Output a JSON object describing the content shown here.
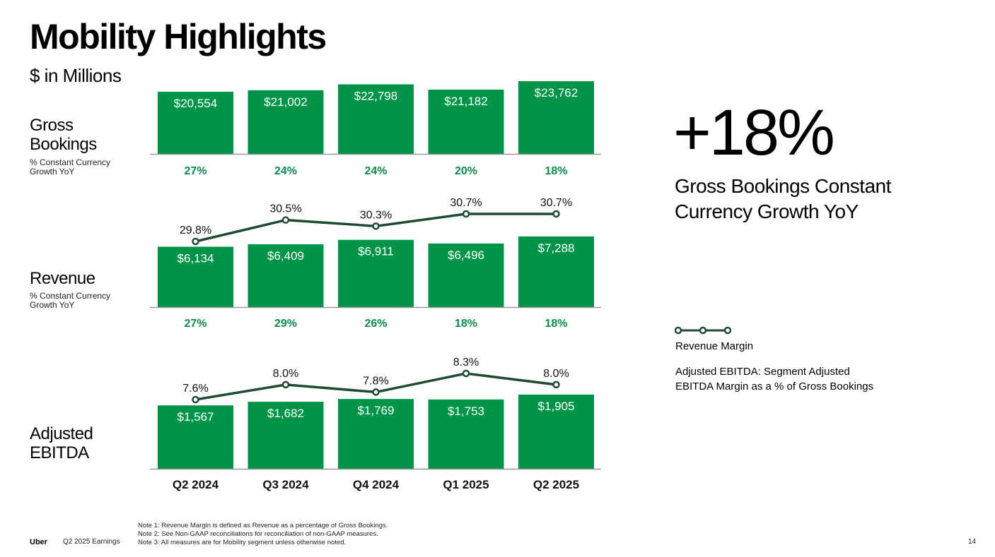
{
  "page": {
    "title": "Mobility Highlights",
    "subtitle": "$ in Millions",
    "page_number": "14"
  },
  "rows": {
    "gross_bookings": {
      "label_line1": "Gross",
      "label_line2": "Bookings",
      "sub_line1": "% Constant Currency",
      "sub_line2": "Growth YoY"
    },
    "revenue": {
      "label": "Revenue",
      "sub_line1": "% Constant Currency",
      "sub_line2": "Growth YoY"
    },
    "ebitda": {
      "label_line1": "Adjusted",
      "label_line2": "EBITDA"
    }
  },
  "highlight": {
    "value": "+18%",
    "caption_line1": "Gross Bookings Constant",
    "caption_line2": "Currency Growth YoY"
  },
  "legend": {
    "series_label": "Revenue Margin",
    "note_line1": "Adjusted EBITDA: Segment Adjusted",
    "note_line2": "EBITDA Margin as a % of Gross Bookings"
  },
  "footer": {
    "logo": "Uber",
    "deck": "Q2 2025 Earnings",
    "notes": [
      "Note 1: Revenue Margin is defined as Revenue as a percentage of Gross Bookings.",
      "Note 2: See Non-GAAP reconciliations for reconciliation of non-GAAP measures.",
      "Note 3: All measures are for Mobility segment unless otherwise noted."
    ]
  },
  "colors": {
    "bar": "#009448",
    "growth_text": "#0e8a4b",
    "line": "#1f4a34",
    "axis": "#999999"
  },
  "chart_data": [
    {
      "type": "bar",
      "title": "Gross Bookings",
      "categories": [
        "Q2 2024",
        "Q3 2024",
        "Q4 2024",
        "Q1 2025",
        "Q2 2025"
      ],
      "values": [
        20554,
        21002,
        22798,
        21182,
        23762
      ],
      "value_labels": [
        "$20,554",
        "$21,002",
        "$22,798",
        "$21,182",
        "$23,762"
      ],
      "growth_labels": [
        "27%",
        "24%",
        "24%",
        "20%",
        "18%"
      ],
      "growth_values": [
        27,
        24,
        24,
        20,
        18
      ],
      "ylabel": "$ in Millions"
    },
    {
      "type": "bar",
      "title": "Revenue",
      "categories": [
        "Q2 2024",
        "Q3 2024",
        "Q4 2024",
        "Q1 2025",
        "Q2 2025"
      ],
      "values": [
        6134,
        6409,
        6911,
        6496,
        7288
      ],
      "value_labels": [
        "$6,134",
        "$6,409",
        "$6,911",
        "$6,496",
        "$7,288"
      ],
      "growth_labels": [
        "27%",
        "29%",
        "26%",
        "18%",
        "18%"
      ],
      "growth_values": [
        27,
        29,
        26,
        18,
        18
      ],
      "line_series": {
        "name": "Revenue Margin",
        "values": [
          29.8,
          30.5,
          30.3,
          30.7,
          30.7
        ],
        "labels": [
          "29.8%",
          "30.5%",
          "30.3%",
          "30.7%",
          "30.7%"
        ]
      }
    },
    {
      "type": "bar",
      "title": "Adjusted EBITDA",
      "categories": [
        "Q2 2024",
        "Q3 2024",
        "Q4 2024",
        "Q1 2025",
        "Q2 2025"
      ],
      "values": [
        1567,
        1682,
        1769,
        1753,
        1905
      ],
      "value_labels": [
        "$1,567",
        "$1,682",
        "$1,769",
        "$1,753",
        "$1,905"
      ],
      "line_series": {
        "name": "Adjusted EBITDA Margin",
        "values": [
          7.6,
          8.0,
          7.8,
          8.3,
          8.0
        ],
        "labels": [
          "7.6%",
          "8.0%",
          "7.8%",
          "8.3%",
          "8.0%"
        ]
      }
    }
  ]
}
